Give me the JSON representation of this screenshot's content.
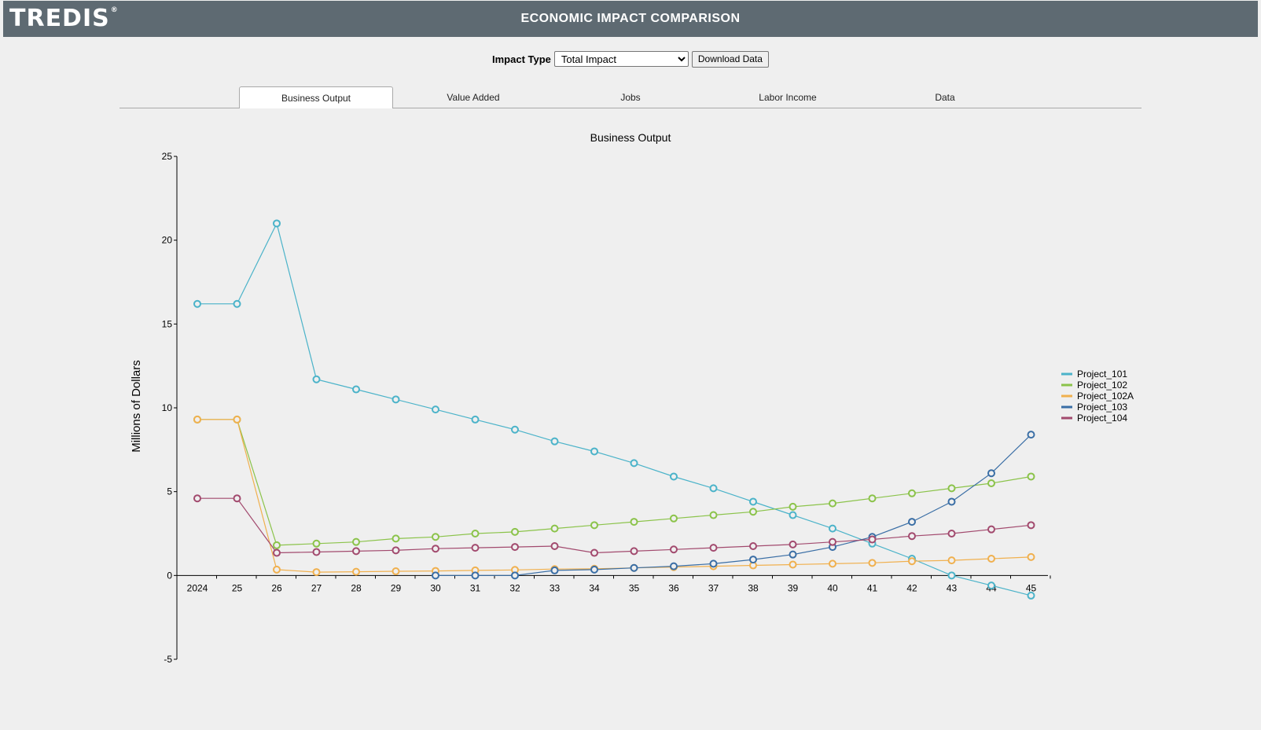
{
  "header": {
    "logo_text": "TREDIS",
    "logo_mark": "®",
    "title": "ECONOMIC IMPACT COMPARISON"
  },
  "controls": {
    "impact_type_label": "Impact Type",
    "impact_type_selected": "Total Impact",
    "download_label": "Download Data"
  },
  "tabs": [
    {
      "label": "Business Output",
      "active": true
    },
    {
      "label": "Value Added",
      "active": false
    },
    {
      "label": "Jobs",
      "active": false
    },
    {
      "label": "Labor Income",
      "active": false
    },
    {
      "label": "Data",
      "active": false
    }
  ],
  "chart_data": {
    "type": "line",
    "title": "Business Output",
    "xlabel": "",
    "ylabel": "Millions of Dollars",
    "ylim": [
      -5,
      25
    ],
    "yticks": [
      -5,
      0,
      5,
      10,
      15,
      20,
      25
    ],
    "grid": false,
    "legend_position": "right",
    "x": [
      "2024",
      "25",
      "26",
      "27",
      "28",
      "29",
      "30",
      "31",
      "32",
      "33",
      "34",
      "35",
      "36",
      "37",
      "38",
      "39",
      "40",
      "41",
      "42",
      "43",
      "44",
      "45"
    ],
    "series": [
      {
        "name": "Project_101",
        "color": "#4bb3c9",
        "values": [
          16.2,
          16.2,
          21.0,
          11.7,
          11.1,
          10.5,
          9.9,
          9.3,
          8.7,
          8.0,
          7.4,
          6.7,
          5.9,
          5.2,
          4.4,
          3.6,
          2.8,
          1.9,
          1.0,
          0.0,
          -0.6,
          -1.2
        ]
      },
      {
        "name": "Project_102",
        "color": "#8bc34a",
        "values": [
          9.3,
          9.3,
          1.8,
          1.9,
          2.0,
          2.2,
          2.3,
          2.5,
          2.6,
          2.8,
          3.0,
          3.2,
          3.4,
          3.6,
          3.8,
          4.1,
          4.3,
          4.6,
          4.9,
          5.2,
          5.5,
          5.9
        ]
      },
      {
        "name": "Project_102A",
        "color": "#f0b04e",
        "values": [
          9.3,
          9.3,
          0.35,
          0.2,
          0.22,
          0.25,
          0.27,
          0.3,
          0.33,
          0.38,
          0.4,
          0.45,
          0.5,
          0.55,
          0.6,
          0.65,
          0.7,
          0.75,
          0.85,
          0.9,
          1.0,
          1.1
        ]
      },
      {
        "name": "Project_103",
        "color": "#3a6ea5",
        "values": [
          null,
          null,
          null,
          null,
          null,
          null,
          0.0,
          0.0,
          0.0,
          0.3,
          0.35,
          0.45,
          0.55,
          0.7,
          0.95,
          1.25,
          1.7,
          2.3,
          3.2,
          4.4,
          6.1,
          8.4
        ]
      },
      {
        "name": "Project_104",
        "color": "#a24a6e",
        "values": [
          4.6,
          4.6,
          1.35,
          1.4,
          1.45,
          1.5,
          1.6,
          1.65,
          1.7,
          1.75,
          1.35,
          1.45,
          1.55,
          1.65,
          1.75,
          1.85,
          2.0,
          2.15,
          2.35,
          2.5,
          2.75,
          3.0
        ]
      }
    ]
  }
}
